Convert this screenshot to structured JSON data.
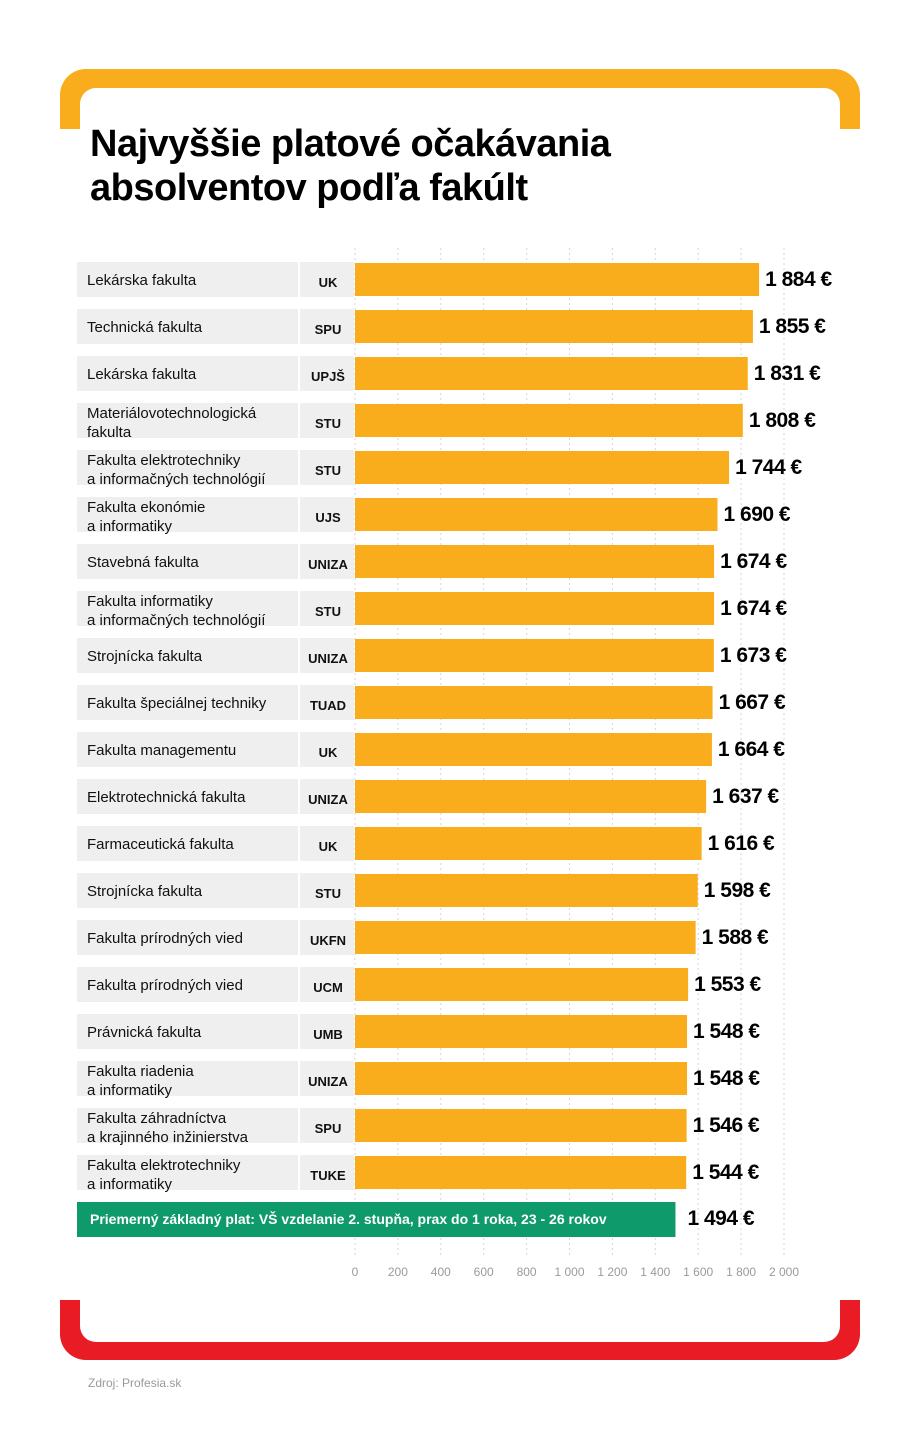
{
  "title": {
    "line1": "Najvyššie platové očakávania",
    "line2": "absolventov podľa fakúlt"
  },
  "source": "Zdroj: Profesia.sk",
  "colors": {
    "bar": "#f9ac1c",
    "label_bg": "#efefef",
    "avg_box": "#0f9a6b",
    "frame_top": "#f9ac1c",
    "frame_bottom": "#e91b25"
  },
  "chart_data": {
    "type": "bar",
    "orientation": "horizontal",
    "xlim": [
      0,
      2000
    ],
    "ticks": [
      "0",
      "200",
      "400",
      "600",
      "800",
      "1 000",
      "1 200",
      "1 400",
      "1 600",
      "1 800",
      "2 000"
    ],
    "grid": true,
    "rows": [
      {
        "faculty": [
          "Lekárska fakulta"
        ],
        "university": "UK",
        "value": 1884,
        "label": "1 884 €"
      },
      {
        "faculty": [
          "Technická fakulta"
        ],
        "university": "SPU",
        "value": 1855,
        "label": "1 855 €"
      },
      {
        "faculty": [
          "Lekárska fakulta"
        ],
        "university": "UPJŠ",
        "value": 1831,
        "label": "1 831 €"
      },
      {
        "faculty": [
          "Materiálovotechnologická",
          "fakulta"
        ],
        "university": "STU",
        "value": 1808,
        "label": "1 808 €"
      },
      {
        "faculty": [
          "Fakulta elektrotechniky",
          "a informačných technológií"
        ],
        "university": "STU",
        "value": 1744,
        "label": "1 744 €"
      },
      {
        "faculty": [
          "Fakulta ekonómie",
          "a informatiky"
        ],
        "university": "UJS",
        "value": 1690,
        "label": "1 690 €"
      },
      {
        "faculty": [
          "Stavebná fakulta"
        ],
        "university": "UNIZA",
        "value": 1674,
        "label": "1 674 €"
      },
      {
        "faculty": [
          "Fakulta informatiky",
          "a informačných technológií"
        ],
        "university": "STU",
        "value": 1674,
        "label": "1 674 €"
      },
      {
        "faculty": [
          "Strojnícka fakulta"
        ],
        "university": "UNIZA",
        "value": 1673,
        "label": "1 673 €"
      },
      {
        "faculty": [
          "Fakulta špeciálnej techniky"
        ],
        "university": "TUAD",
        "value": 1667,
        "label": "1 667 €"
      },
      {
        "faculty": [
          "Fakulta managementu"
        ],
        "university": "UK",
        "value": 1664,
        "label": "1 664 €"
      },
      {
        "faculty": [
          "Elektrotechnická fakulta"
        ],
        "university": "UNIZA",
        "value": 1637,
        "label": "1 637 €"
      },
      {
        "faculty": [
          "Farmaceutická fakulta"
        ],
        "university": "UK",
        "value": 1616,
        "label": "1 616 €"
      },
      {
        "faculty": [
          "Strojnícka fakulta"
        ],
        "university": "STU",
        "value": 1598,
        "label": "1 598 €"
      },
      {
        "faculty": [
          "Fakulta prírodných vied"
        ],
        "university": "UKFN",
        "value": 1588,
        "label": "1 588 €"
      },
      {
        "faculty": [
          "Fakulta prírodných vied"
        ],
        "university": "UCM",
        "value": 1553,
        "label": "1 553 €"
      },
      {
        "faculty": [
          "Právnická fakulta"
        ],
        "university": "UMB",
        "value": 1548,
        "label": "1 548 €"
      },
      {
        "faculty": [
          "Fakulta riadenia",
          "a informatiky"
        ],
        "university": "UNIZA",
        "value": 1548,
        "label": "1 548 €"
      },
      {
        "faculty": [
          "Fakulta záhradníctva",
          "a krajinného inžinierstva"
        ],
        "university": "SPU",
        "value": 1546,
        "label": "1 546 €"
      },
      {
        "faculty": [
          "Fakulta elektrotechniky",
          "a informatiky"
        ],
        "university": "TUKE",
        "value": 1544,
        "label": "1 544 €"
      }
    ],
    "average": {
      "label": "Priemerný základný plat: VŠ vzdelanie 2. stupňa, prax do 1 roka, 23 - 26 rokov",
      "value": 1494,
      "value_label": "1 494 €"
    }
  }
}
